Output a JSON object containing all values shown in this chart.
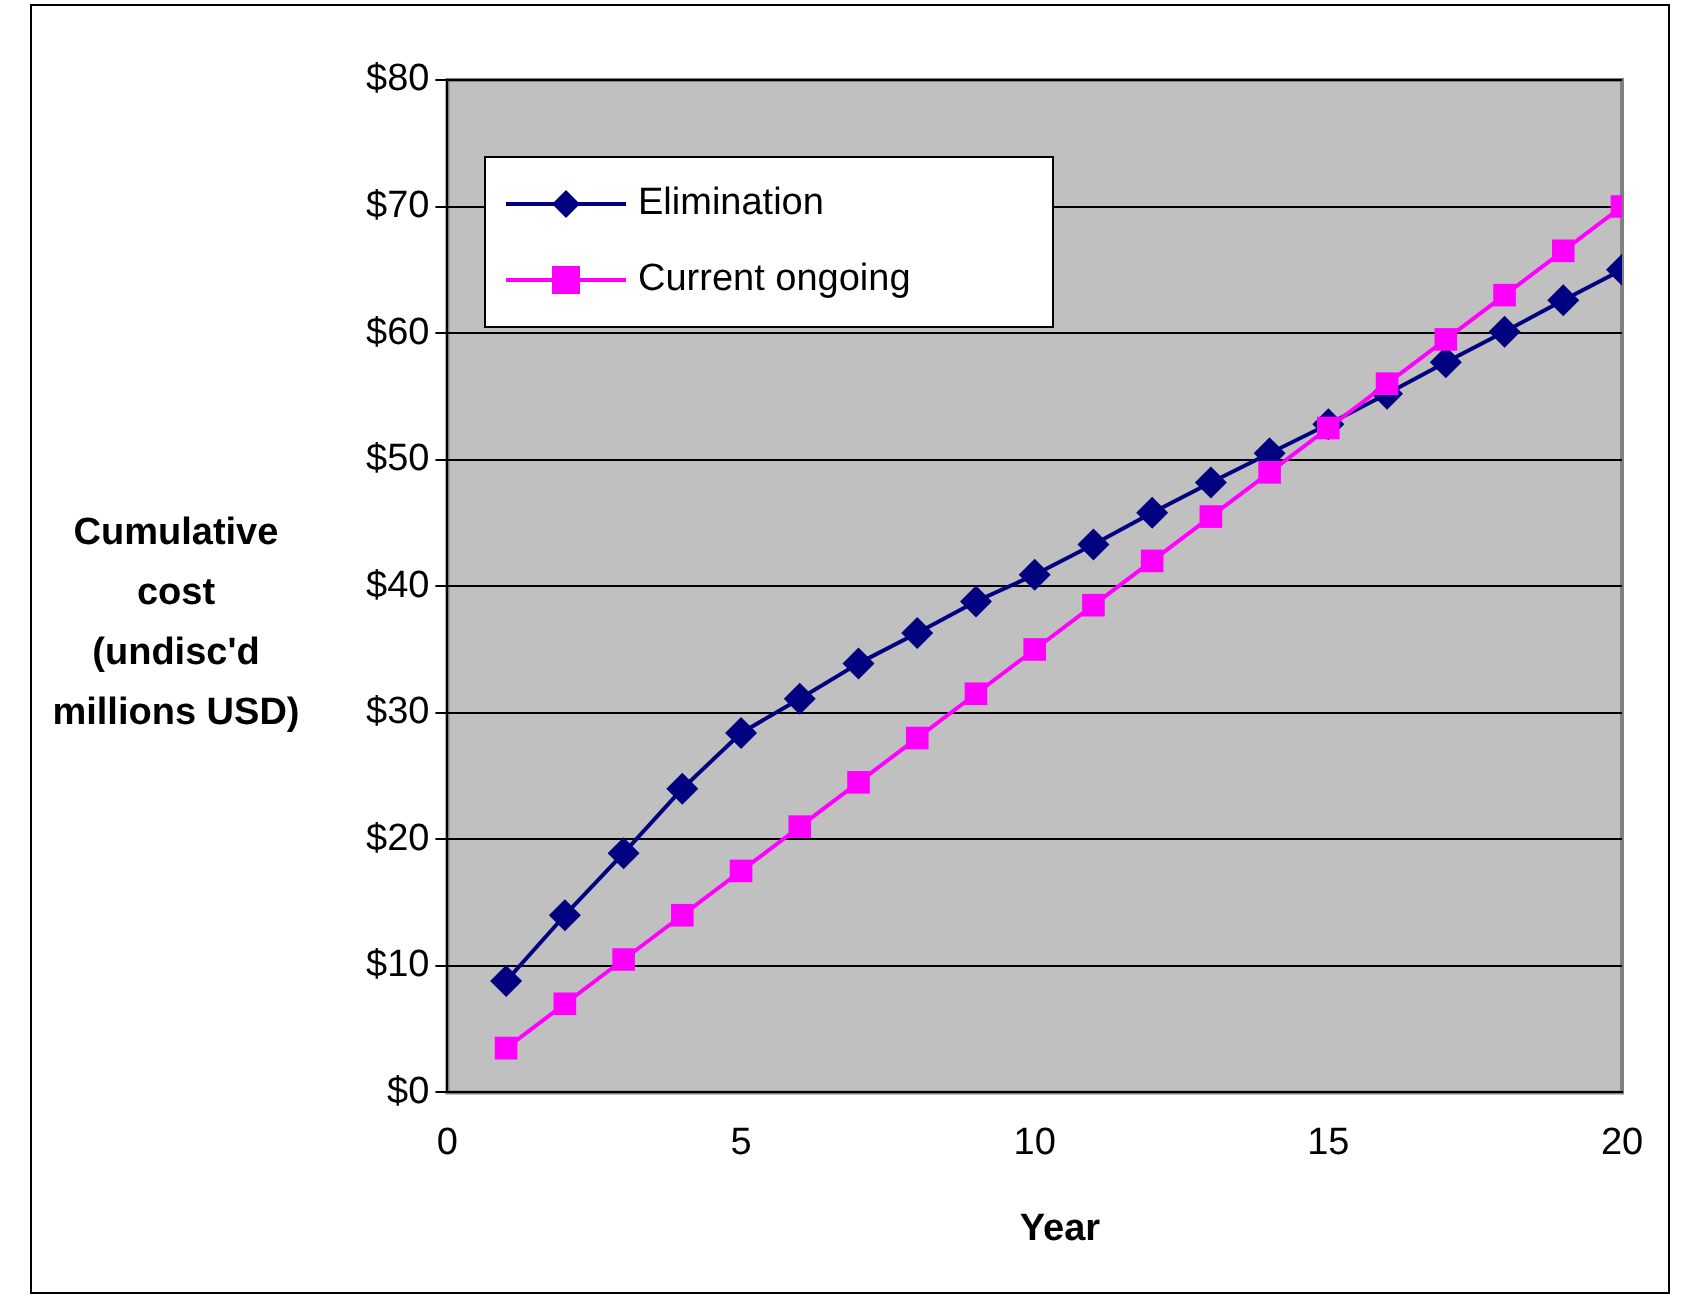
{
  "chart_data": {
    "type": "line",
    "xlabel": "Year",
    "ylabel": "Cumulative\ncost\n(undisc'd\nmillions USD)",
    "x": [
      1,
      2,
      3,
      4,
      5,
      6,
      7,
      8,
      9,
      10,
      11,
      12,
      13,
      14,
      15,
      16,
      17,
      18,
      19,
      20
    ],
    "series": [
      {
        "name": "Elimination",
        "color": "#000080",
        "marker": "diamond",
        "values": [
          8.8,
          14.0,
          18.9,
          24.0,
          28.4,
          31.1,
          33.9,
          36.3,
          38.8,
          40.9,
          43.3,
          45.8,
          48.2,
          50.5,
          52.8,
          55.2,
          57.7,
          60.1,
          62.6,
          65.0
        ]
      },
      {
        "name": "Current ongoing",
        "color": "#ff00ff",
        "marker": "square",
        "values": [
          3.5,
          7,
          10.5,
          14,
          17.5,
          21,
          24.5,
          28,
          31.5,
          35,
          38.5,
          42,
          45.5,
          49,
          52.5,
          56,
          59.5,
          63,
          66.5,
          70
        ]
      }
    ],
    "xlim": [
      0,
      20
    ],
    "xticks": [
      0,
      5,
      10,
      15,
      20
    ],
    "ylim": [
      0,
      80
    ],
    "yticks": [
      {
        "value": 0,
        "label": "$0"
      },
      {
        "value": 10,
        "label": "$10"
      },
      {
        "value": 20,
        "label": "$20"
      },
      {
        "value": 30,
        "label": "$30"
      },
      {
        "value": 40,
        "label": "$40"
      },
      {
        "value": 50,
        "label": "$50"
      },
      {
        "value": 60,
        "label": "$60"
      },
      {
        "value": 70,
        "label": "$70"
      },
      {
        "value": 80,
        "label": "$80"
      }
    ],
    "grid": "y",
    "legend": "top left",
    "line_style": "solid"
  }
}
